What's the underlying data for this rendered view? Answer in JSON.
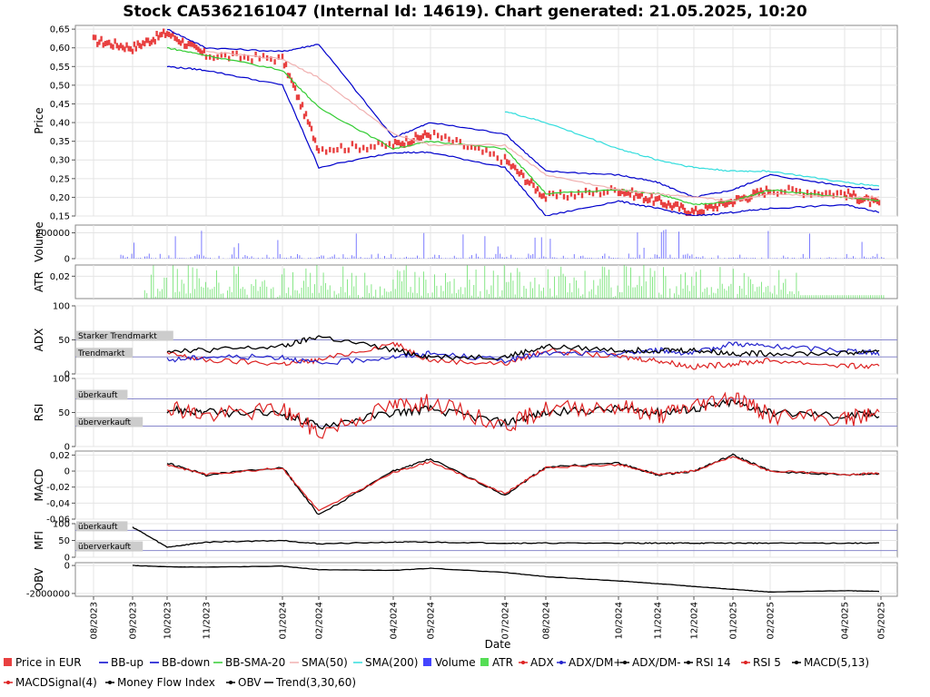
{
  "chart_data": {
    "type": "line",
    "title": "Stock CA5362161047 (Internal Id: 14619). Chart generated: 21.05.2025, 10:20",
    "xlabel": "Date",
    "x_ticks": [
      "08/2023",
      "09/2023",
      "10/2023",
      "11/2023",
      "01/2024",
      "02/2024",
      "04/2024",
      "05/2024",
      "07/2024",
      "08/2024",
      "10/2024",
      "11/2024",
      "12/2024",
      "01/2025",
      "02/2025",
      "04/2025",
      "05/2025"
    ],
    "price_panel": {
      "ylabel": "Price",
      "ylim": [
        0.15,
        0.66
      ],
      "y_ticks": [
        "0,65",
        "0,60",
        "0,55",
        "0,50",
        "0,45",
        "0,40",
        "0,35",
        "0,30",
        "0,25",
        "0,20",
        "0,15"
      ],
      "series": [
        {
          "name": "Price in EUR",
          "color": "#e84040",
          "x": [
            "2023-08",
            "2023-09",
            "2023-10",
            "2023-11",
            "2024-01",
            "2024-02",
            "2024-04",
            "2024-05",
            "2024-07",
            "2024-08",
            "2024-10",
            "2024-11",
            "2024-12",
            "2025-01",
            "2025-02",
            "2025-04",
            "2025-05"
          ],
          "values": [
            0.62,
            0.6,
            0.64,
            0.58,
            0.57,
            0.33,
            0.34,
            0.37,
            0.3,
            0.2,
            0.22,
            0.19,
            0.16,
            0.19,
            0.22,
            0.21,
            0.18
          ]
        },
        {
          "name": "BB-up",
          "color": "#0000cc",
          "values": [
            null,
            null,
            0.65,
            0.6,
            0.59,
            0.61,
            0.36,
            0.4,
            0.37,
            0.27,
            0.26,
            0.24,
            0.2,
            0.22,
            0.26,
            0.23,
            0.22
          ]
        },
        {
          "name": "BB-down",
          "color": "#0000cc",
          "values": [
            null,
            null,
            0.55,
            0.54,
            0.5,
            0.28,
            0.32,
            0.32,
            0.28,
            0.15,
            0.19,
            0.17,
            0.15,
            0.16,
            0.17,
            0.18,
            0.16
          ]
        },
        {
          "name": "BB-SMA-20",
          "color": "#33cc33",
          "values": [
            null,
            null,
            0.6,
            0.58,
            0.54,
            0.44,
            0.33,
            0.35,
            0.33,
            0.21,
            0.22,
            0.21,
            0.18,
            0.19,
            0.22,
            0.2,
            0.19
          ]
        },
        {
          "name": "SMA(50)",
          "color": "#f0b0b0",
          "values": [
            null,
            null,
            null,
            0.59,
            0.57,
            0.52,
            0.37,
            0.34,
            0.34,
            0.26,
            0.22,
            0.21,
            0.2,
            0.19,
            0.21,
            0.2,
            0.2
          ]
        },
        {
          "name": "SMA(200)",
          "color": "#33dddd",
          "values": [
            null,
            null,
            null,
            null,
            null,
            null,
            null,
            null,
            0.43,
            0.4,
            0.33,
            0.3,
            0.28,
            0.27,
            0.27,
            0.24,
            0.23
          ]
        }
      ]
    },
    "volume_panel": {
      "ylabel": "Volume",
      "ylim": [
        0,
        260000
      ],
      "y_ticks": [
        "200000",
        "0"
      ],
      "series": [
        {
          "name": "Volume",
          "color": "#4444ff"
        }
      ]
    },
    "atr_panel": {
      "ylabel": "ATR",
      "ylim": [
        0,
        0.03
      ],
      "y_ticks": [
        "0,02"
      ],
      "series": [
        {
          "name": "ATR",
          "color": "#55dd55"
        }
      ]
    },
    "adx_panel": {
      "ylabel": "ADX",
      "ylim": [
        0,
        100
      ],
      "y_ticks": [
        "100",
        "50",
        "0"
      ],
      "zones": [
        {
          "label": "Starker Trendmarkt",
          "value": 50
        },
        {
          "label": "Trendmarkt",
          "value": 25
        }
      ],
      "series": [
        {
          "name": "ADX",
          "color": "#dd2222",
          "values": [
            null,
            null,
            30,
            20,
            15,
            20,
            45,
            20,
            15,
            35,
            25,
            20,
            10,
            15,
            20,
            12,
            10
          ]
        },
        {
          "name": "ADX/DM+",
          "color": "#2222cc",
          "values": [
            null,
            null,
            20,
            25,
            25,
            15,
            25,
            30,
            20,
            30,
            30,
            35,
            30,
            45,
            40,
            35,
            30
          ]
        },
        {
          "name": "ADX/DM-",
          "color": "#000000",
          "values": [
            null,
            null,
            35,
            35,
            40,
            55,
            35,
            25,
            25,
            40,
            35,
            35,
            35,
            30,
            30,
            30,
            35
          ]
        }
      ]
    },
    "rsi_panel": {
      "ylabel": "RSI",
      "ylim": [
        0,
        100
      ],
      "y_ticks": [
        "100",
        "50",
        "0"
      ],
      "zones": [
        {
          "label": "überkauft",
          "value": 70
        },
        {
          "label": "überverkauft",
          "value": 30
        }
      ],
      "series": [
        {
          "name": "RSI 14",
          "color": "#000000",
          "values": [
            null,
            null,
            55,
            50,
            48,
            30,
            50,
            55,
            35,
            50,
            55,
            50,
            55,
            65,
            50,
            45,
            48
          ]
        },
        {
          "name": "RSI 5",
          "color": "#dd2222",
          "values": [
            null,
            null,
            60,
            45,
            55,
            20,
            60,
            65,
            30,
            55,
            60,
            45,
            60,
            75,
            45,
            40,
            50
          ]
        }
      ]
    },
    "macd_panel": {
      "ylabel": "MACD",
      "ylim": [
        -0.06,
        0.025
      ],
      "y_ticks": [
        "0,02",
        "0",
        "-0,02",
        "-0,04",
        "-0,06"
      ],
      "series": [
        {
          "name": "MACD(5,13)",
          "color": "#000000",
          "values": [
            null,
            null,
            0.01,
            -0.005,
            0.005,
            -0.055,
            0.0,
            0.015,
            -0.03,
            0.005,
            0.01,
            -0.005,
            0.0,
            0.02,
            0.0,
            -0.005,
            -0.003
          ]
        },
        {
          "name": "MACDSignal(4)",
          "color": "#dd2222",
          "values": [
            null,
            null,
            0.008,
            -0.004,
            0.004,
            -0.05,
            -0.002,
            0.012,
            -0.028,
            0.004,
            0.008,
            -0.004,
            0.0,
            0.018,
            0.0,
            -0.004,
            -0.003
          ]
        }
      ]
    },
    "mfi_panel": {
      "ylabel": "MFI",
      "ylim": [
        0,
        100
      ],
      "y_ticks": [
        "100",
        "50",
        "0"
      ],
      "zones": [
        {
          "label": "überkauft",
          "value": 80
        },
        {
          "label": "überverkauft",
          "value": 20
        }
      ],
      "series": [
        {
          "name": "Money Flow Index",
          "color": "#000000",
          "values": [
            null,
            90,
            30,
            45,
            50,
            40,
            45,
            45,
            42,
            42,
            42,
            42,
            42,
            42,
            42,
            42,
            42
          ]
        }
      ]
    },
    "obv_panel": {
      "ylabel": "OBV",
      "ylim": [
        -2200000,
        200000
      ],
      "y_ticks": [
        "0",
        "-2000000"
      ],
      "series": [
        {
          "name": "OBV",
          "color": "#000000",
          "values": [
            null,
            0,
            -100000,
            -120000,
            -50000,
            -300000,
            -350000,
            -200000,
            -500000,
            -800000,
            -1100000,
            -1300000,
            -1500000,
            -1700000,
            -1900000,
            -1800000,
            -1850000
          ]
        }
      ]
    },
    "legend": [
      {
        "label": "Price in EUR",
        "color": "#e84040",
        "kind": "box"
      },
      {
        "label": "BB-up",
        "color": "#0000cc",
        "kind": "line"
      },
      {
        "label": "BB-down",
        "color": "#0000cc",
        "kind": "line"
      },
      {
        "label": "BB-SMA-20",
        "color": "#33cc33",
        "kind": "line"
      },
      {
        "label": "SMA(50)",
        "color": "#f0b0b0",
        "kind": "line"
      },
      {
        "label": "SMA(200)",
        "color": "#33dddd",
        "kind": "line"
      },
      {
        "label": "Volume",
        "color": "#4444ff",
        "kind": "box"
      },
      {
        "label": "ATR",
        "color": "#55dd55",
        "kind": "box"
      },
      {
        "label": "ADX",
        "color": "#dd2222",
        "kind": "dotline"
      },
      {
        "label": "ADX/DM+",
        "color": "#2222cc",
        "kind": "dotline"
      },
      {
        "label": "ADX/DM-",
        "color": "#000000",
        "kind": "dotline"
      },
      {
        "label": "RSI 14",
        "color": "#000000",
        "kind": "dotline"
      },
      {
        "label": "RSI 5",
        "color": "#dd2222",
        "kind": "dotline"
      },
      {
        "label": "MACD(5,13)",
        "color": "#000000",
        "kind": "dotline"
      },
      {
        "label": "MACDSignal(4)",
        "color": "#dd2222",
        "kind": "dotline"
      },
      {
        "label": "Money Flow Index",
        "color": "#000000",
        "kind": "dotline"
      },
      {
        "label": "OBV",
        "color": "#000000",
        "kind": "dotline"
      },
      {
        "label": "Trend(3,30,60)",
        "color": "#000000",
        "kind": "line"
      }
    ]
  }
}
